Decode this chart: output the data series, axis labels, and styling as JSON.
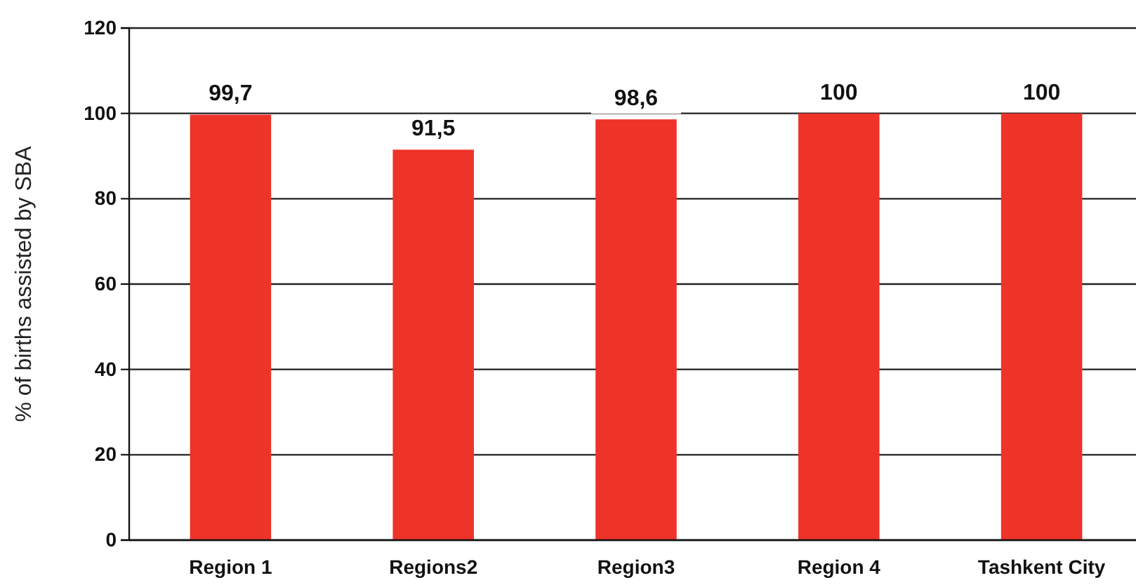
{
  "chart_data": {
    "type": "bar",
    "ylabel": "% of births assisted by SBA",
    "categories": [
      "Region 1",
      "Regions2",
      "Region3",
      "Region 4",
      "Tashkent City"
    ],
    "values": [
      99.7,
      91.5,
      98.6,
      100,
      100
    ],
    "value_labels": [
      "99,7",
      "91,5",
      "98,6",
      "100",
      "100"
    ],
    "color": "#ee3329",
    "ylim": [
      0,
      120
    ],
    "yticks": [
      0,
      20,
      40,
      60,
      80,
      100,
      120
    ],
    "grid": "y"
  }
}
